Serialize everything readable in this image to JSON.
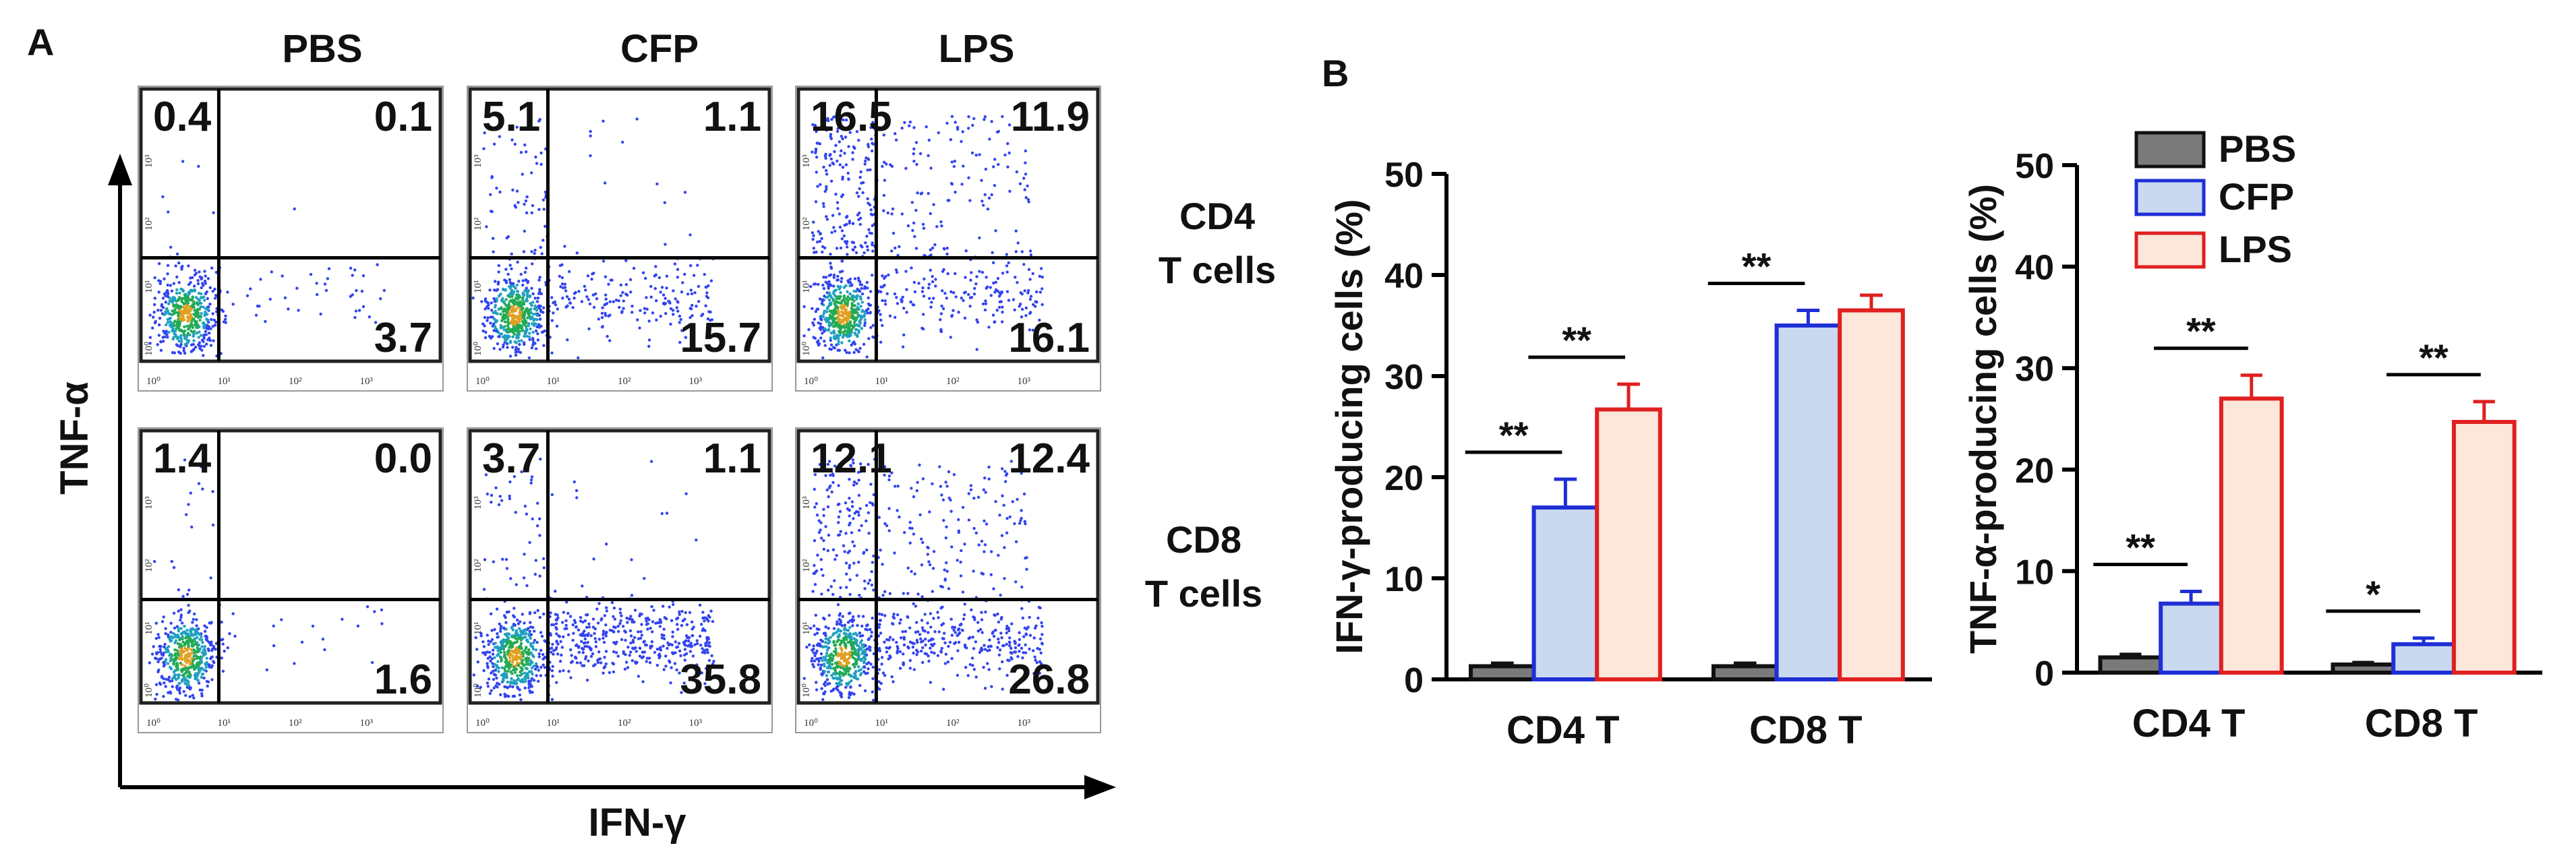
{
  "figure": {
    "panel_a_label": "A",
    "panel_b_label": "B"
  },
  "panel_a": {
    "columns": [
      "PBS",
      "CFP",
      "LPS"
    ],
    "rows": [
      {
        "label_line1": "CD4",
        "label_line2": "T cells"
      },
      {
        "label_line1": "CD8",
        "label_line2": "T cells"
      }
    ],
    "y_axis_label": "TNF-α",
    "x_axis_label": "IFN-γ",
    "tick_labels": [
      "10⁰",
      "10¹",
      "10²",
      "10³"
    ],
    "quadrants": [
      [
        {
          "ul": "0.4",
          "ur": "0.1",
          "lr": "3.7"
        },
        {
          "ul": "5.1",
          "ur": "1.1",
          "lr": "15.7"
        },
        {
          "ul": "16.5",
          "ur": "11.9",
          "lr": "16.1"
        }
      ],
      [
        {
          "ul": "1.4",
          "ur": "0.0",
          "lr": "1.6"
        },
        {
          "ul": "3.7",
          "ur": "1.1",
          "lr": "35.8"
        },
        {
          "ul": "12.1",
          "ur": "12.4",
          "lr": "26.8"
        }
      ]
    ]
  },
  "legend": {
    "entries": [
      {
        "name": "PBS",
        "fill": "#7a7a7a",
        "stroke": "#111111"
      },
      {
        "name": "CFP",
        "fill": "#c8d9f0",
        "stroke": "#1f2fd6"
      },
      {
        "name": "LPS",
        "fill": "#fde6da",
        "stroke": "#e02020"
      }
    ]
  },
  "chart_data": [
    {
      "type": "bar",
      "title": "",
      "xlabel": "",
      "ylabel": "IFN-γ-producing cells (%)",
      "ylim": [
        0,
        50
      ],
      "yticks": [
        0,
        10,
        20,
        30,
        40,
        50
      ],
      "categories": [
        "CD4 T",
        "CD8 T"
      ],
      "series": [
        {
          "name": "PBS",
          "values": [
            1.3,
            1.3
          ],
          "errors": [
            0.3,
            0.3
          ]
        },
        {
          "name": "CFP",
          "values": [
            17.0,
            35.0
          ],
          "errors": [
            2.8,
            1.5
          ]
        },
        {
          "name": "LPS",
          "values": [
            26.7,
            36.5
          ],
          "errors": [
            2.5,
            1.5
          ]
        }
      ],
      "significance": [
        {
          "category": "CD4 T",
          "from": "PBS",
          "to": "CFP",
          "label": "**"
        },
        {
          "category": "CD4 T",
          "from": "CFP",
          "to": "LPS",
          "label": "**"
        },
        {
          "category": "CD8 T",
          "from": "PBS",
          "to": "CFP",
          "label": "**"
        }
      ]
    },
    {
      "type": "bar",
      "title": "",
      "xlabel": "",
      "ylabel": "TNF-α-producing cells (%)",
      "ylim": [
        0,
        50
      ],
      "yticks": [
        0,
        10,
        20,
        30,
        40,
        50
      ],
      "categories": [
        "CD4 T",
        "CD8 T"
      ],
      "series": [
        {
          "name": "PBS",
          "values": [
            1.5,
            0.8
          ],
          "errors": [
            0.3,
            0.2
          ]
        },
        {
          "name": "CFP",
          "values": [
            6.8,
            2.8
          ],
          "errors": [
            1.2,
            0.6
          ]
        },
        {
          "name": "LPS",
          "values": [
            27.0,
            24.7
          ],
          "errors": [
            2.3,
            2.0
          ]
        }
      ],
      "significance": [
        {
          "category": "CD4 T",
          "from": "PBS",
          "to": "CFP",
          "label": "**"
        },
        {
          "category": "CD4 T",
          "from": "CFP",
          "to": "LPS",
          "label": "**"
        },
        {
          "category": "CD8 T",
          "from": "PBS",
          "to": "CFP",
          "label": "*"
        },
        {
          "category": "CD8 T",
          "from": "CFP",
          "to": "LPS",
          "label": "**"
        }
      ]
    }
  ]
}
